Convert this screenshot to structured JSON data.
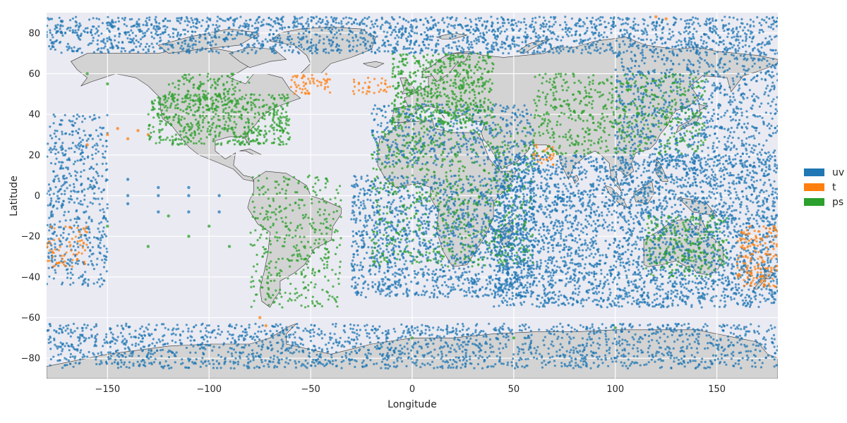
{
  "chart_data": {
    "type": "scatter",
    "title": "",
    "xlabel": "Longitude",
    "ylabel": "Latitude",
    "xlim": [
      -180,
      180
    ],
    "ylim": [
      -90,
      90
    ],
    "xticks": [
      -150,
      -100,
      -50,
      0,
      50,
      100,
      150
    ],
    "yticks": [
      -80,
      -60,
      -40,
      -20,
      0,
      20,
      40,
      60,
      80
    ],
    "xtick_labels": [
      "−150",
      "−100",
      "−50",
      "0",
      "50",
      "100",
      "150"
    ],
    "ytick_labels": [
      "−80",
      "−60",
      "−40",
      "−20",
      "0",
      "20",
      "40",
      "60",
      "80"
    ],
    "grid": true,
    "legend_position": "right",
    "background_color": "#eaeaf2",
    "land_color": "#d3d3d3",
    "series": [
      {
        "name": "uv",
        "color": "#1f77b4",
        "regions": [
          {
            "lon": [
              -180,
              180
            ],
            "lat": [
              70,
              88
            ],
            "density": 0.9
          },
          {
            "lon": [
              -180,
              -150
            ],
            "lat": [
              -45,
              40
            ],
            "density": 0.6
          },
          {
            "lon": [
              -30,
              60
            ],
            "lat": [
              -50,
              10
            ],
            "density": 0.8
          },
          {
            "lon": [
              40,
              180
            ],
            "lat": [
              -55,
              20
            ],
            "density": 0.9
          },
          {
            "lon": [
              -180,
              180
            ],
            "lat": [
              -85,
              -63
            ],
            "density": 0.7
          },
          {
            "lon": [
              -20,
              60
            ],
            "lat": [
              15,
              45
            ],
            "density": 0.6
          },
          {
            "lon": [
              100,
              180
            ],
            "lat": [
              15,
              70
            ],
            "density": 0.6
          }
        ],
        "points": [
          [
            -140,
            8
          ],
          [
            -140,
            0
          ],
          [
            -125,
            0
          ],
          [
            -125,
            -8
          ],
          [
            -110,
            0
          ],
          [
            -110,
            -8
          ],
          [
            -95,
            0
          ],
          [
            -95,
            -8
          ],
          [
            -140,
            -4
          ],
          [
            -125,
            4
          ],
          [
            -110,
            4
          ]
        ]
      },
      {
        "name": "t",
        "color": "#ff7f0e",
        "regions": [
          {
            "lon": [
              -60,
              -40
            ],
            "lat": [
              50,
              60
            ],
            "density": 0.8
          },
          {
            "lon": [
              -30,
              -10
            ],
            "lat": [
              50,
              58
            ],
            "density": 0.6
          },
          {
            "lon": [
              60,
              70
            ],
            "lat": [
              15,
              25
            ],
            "density": 0.8
          },
          {
            "lon": [
              160,
              180
            ],
            "lat": [
              -45,
              -15
            ],
            "density": 0.8
          },
          {
            "lon": [
              -180,
              -160
            ],
            "lat": [
              -35,
              -15
            ],
            "density": 0.5
          }
        ],
        "points": [
          [
            -160,
            25
          ],
          [
            -150,
            30
          ],
          [
            -145,
            33
          ],
          [
            -140,
            28
          ],
          [
            -135,
            32
          ],
          [
            -130,
            30
          ],
          [
            -75,
            -60
          ],
          [
            -72,
            -64
          ],
          [
            60,
            20
          ],
          [
            65,
            22
          ],
          [
            120,
            88
          ],
          [
            125,
            87
          ]
        ]
      },
      {
        "name": "ps",
        "color": "#2ca02c",
        "regions": [
          {
            "lon": [
              -130,
              -60
            ],
            "lat": [
              25,
              50
            ],
            "density": 1.0
          },
          {
            "lon": [
              -120,
              -80
            ],
            "lat": [
              45,
              60
            ],
            "density": 0.6
          },
          {
            "lon": [
              -80,
              -35
            ],
            "lat": [
              -55,
              10
            ],
            "density": 0.4
          },
          {
            "lon": [
              -10,
              40
            ],
            "lat": [
              35,
              70
            ],
            "density": 1.0
          },
          {
            "lon": [
              -20,
              60
            ],
            "lat": [
              -35,
              35
            ],
            "density": 0.35
          },
          {
            "lon": [
              60,
              145
            ],
            "lat": [
              20,
              60
            ],
            "density": 0.5
          },
          {
            "lon": [
              115,
              155
            ],
            "lat": [
              -40,
              -10
            ],
            "density": 0.6
          }
        ],
        "points": [
          [
            -150,
            55
          ],
          [
            -160,
            60
          ],
          [
            -120,
            -10
          ],
          [
            -110,
            -20
          ],
          [
            -100,
            -15
          ],
          [
            -90,
            -25
          ],
          [
            -150,
            -15
          ],
          [
            -130,
            -25
          ],
          [
            0,
            -70
          ],
          [
            50,
            -70
          ],
          [
            100,
            -65
          ]
        ]
      }
    ]
  }
}
